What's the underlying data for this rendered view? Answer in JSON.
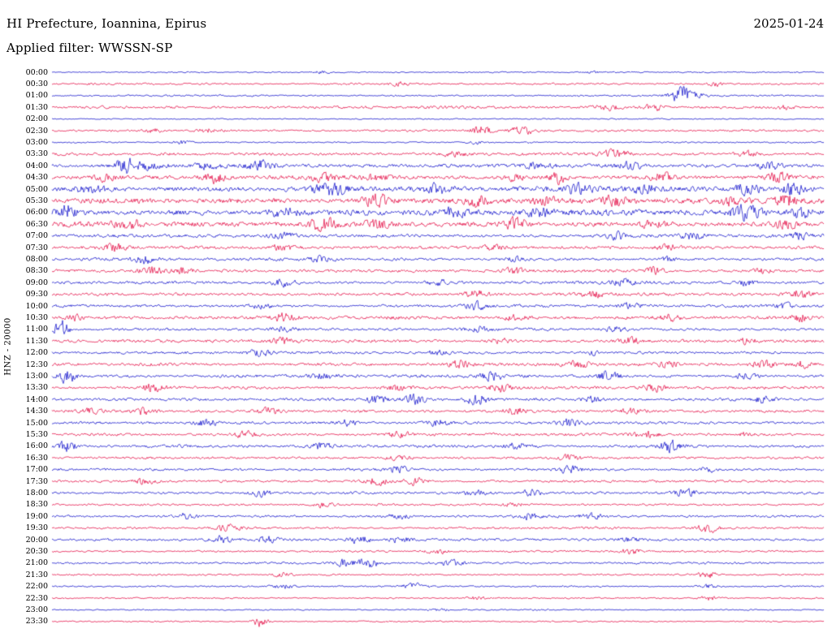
{
  "header": {
    "title": "HI Prefecture, Ioannina, Epirus",
    "date": "2025-01-24",
    "filter_label": "Applied filter: WWSSN-SP",
    "station_label": "HNZ - 20000"
  },
  "chart_data": {
    "type": "line",
    "subtype": "seismogram-helicorder",
    "title": "HI Prefecture, Ioannina, Epirus",
    "date": "2025-01-24",
    "filter": "WWSSN-SP",
    "station_channel": "HNZ",
    "scale": 20000,
    "row_interval_minutes": 30,
    "rows_count": 48,
    "grid": false,
    "legend": false,
    "palette": {
      "blue": "#1a1acd",
      "red": "#e5174c"
    },
    "rows": [
      {
        "time": "00:00",
        "color": "blue",
        "base": 0.5,
        "bursts": [
          [
            0.35,
            1.0,
            10
          ],
          [
            0.7,
            0.8,
            8
          ]
        ]
      },
      {
        "time": "00:30",
        "color": "red",
        "base": 0.7,
        "bursts": [
          [
            0.45,
            1.4,
            8
          ],
          [
            0.86,
            1.8,
            6
          ]
        ]
      },
      {
        "time": "01:00",
        "color": "blue",
        "base": 0.6,
        "bursts": [
          [
            0.815,
            8.5,
            5
          ],
          [
            0.82,
            3.5,
            14
          ]
        ]
      },
      {
        "time": "01:30",
        "color": "red",
        "base": 0.9,
        "bursts": [
          [
            0.72,
            2.2,
            10
          ],
          [
            0.78,
            2.4,
            8
          ],
          [
            0.95,
            1.5,
            8
          ]
        ]
      },
      {
        "time": "02:00",
        "color": "blue",
        "base": 0.4,
        "bursts": []
      },
      {
        "time": "02:30",
        "color": "red",
        "base": 0.8,
        "bursts": [
          [
            0.13,
            1.5,
            8
          ],
          [
            0.2,
            1.6,
            8
          ],
          [
            0.555,
            3.6,
            9
          ],
          [
            0.61,
            3.0,
            12
          ]
        ]
      },
      {
        "time": "03:00",
        "color": "blue",
        "base": 0.5,
        "bursts": [
          [
            0.17,
            1.4,
            8
          ],
          [
            0.55,
            1.2,
            8
          ]
        ]
      },
      {
        "time": "03:30",
        "color": "red",
        "base": 1.0,
        "bursts": [
          [
            0.52,
            2.0,
            10
          ],
          [
            0.73,
            3.0,
            12
          ],
          [
            0.9,
            1.8,
            10
          ]
        ]
      },
      {
        "time": "04:00",
        "color": "blue",
        "base": 1.3,
        "bursts": [
          [
            0.095,
            6.0,
            8
          ],
          [
            0.12,
            3.0,
            16
          ],
          [
            0.2,
            2.5,
            10
          ],
          [
            0.27,
            3.5,
            10
          ],
          [
            0.63,
            2.2,
            12
          ],
          [
            0.75,
            2.8,
            10
          ],
          [
            0.93,
            2.5,
            10
          ]
        ]
      },
      {
        "time": "04:30",
        "color": "red",
        "base": 1.4,
        "bursts": [
          [
            0.07,
            2.5,
            10
          ],
          [
            0.21,
            4.5,
            10
          ],
          [
            0.35,
            3.0,
            12
          ],
          [
            0.42,
            2.5,
            10
          ],
          [
            0.6,
            3.0,
            10
          ],
          [
            0.655,
            4.5,
            8
          ],
          [
            0.79,
            3.2,
            10
          ],
          [
            0.94,
            3.8,
            10
          ]
        ]
      },
      {
        "time": "05:00",
        "color": "blue",
        "base": 1.8,
        "bursts": [
          [
            0.05,
            2.5,
            12
          ],
          [
            0.36,
            5.0,
            12
          ],
          [
            0.5,
            3.0,
            14
          ],
          [
            0.68,
            3.5,
            12
          ],
          [
            0.77,
            3.0,
            10
          ],
          [
            0.9,
            4.0,
            10
          ],
          [
            0.96,
            4.5,
            8
          ]
        ]
      },
      {
        "time": "05:30",
        "color": "red",
        "base": 2.0,
        "bursts": [
          [
            0.42,
            5.5,
            10
          ],
          [
            0.55,
            3.5,
            12
          ],
          [
            0.64,
            3.0,
            10
          ],
          [
            0.73,
            4.0,
            10
          ],
          [
            0.88,
            3.0,
            10
          ],
          [
            0.95,
            5.0,
            8
          ]
        ]
      },
      {
        "time": "06:00",
        "color": "blue",
        "base": 2.0,
        "bursts": [
          [
            0.02,
            6.0,
            8
          ],
          [
            0.3,
            3.0,
            14
          ],
          [
            0.52,
            3.0,
            12
          ],
          [
            0.63,
            3.5,
            10
          ],
          [
            0.9,
            5.5,
            12
          ],
          [
            0.97,
            4.0,
            8
          ]
        ]
      },
      {
        "time": "06:30",
        "color": "red",
        "base": 1.8,
        "bursts": [
          [
            0.1,
            3.0,
            12
          ],
          [
            0.35,
            4.5,
            12
          ],
          [
            0.42,
            3.5,
            10
          ],
          [
            0.6,
            3.8,
            10
          ],
          [
            0.78,
            3.0,
            12
          ],
          [
            0.95,
            3.0,
            10
          ]
        ]
      },
      {
        "time": "07:00",
        "color": "blue",
        "base": 1.2,
        "bursts": [
          [
            0.3,
            2.0,
            10
          ],
          [
            0.73,
            3.0,
            10
          ],
          [
            0.83,
            2.5,
            10
          ],
          [
            0.97,
            2.5,
            8
          ]
        ]
      },
      {
        "time": "07:30",
        "color": "red",
        "base": 1.1,
        "bursts": [
          [
            0.08,
            2.8,
            10
          ],
          [
            0.3,
            2.5,
            10
          ],
          [
            0.57,
            2.0,
            10
          ],
          [
            0.8,
            2.0,
            10
          ]
        ]
      },
      {
        "time": "08:00",
        "color": "blue",
        "base": 1.0,
        "bursts": [
          [
            0.12,
            3.2,
            10
          ],
          [
            0.35,
            2.0,
            10
          ],
          [
            0.6,
            1.8,
            10
          ],
          [
            0.8,
            2.0,
            8
          ]
        ]
      },
      {
        "time": "08:30",
        "color": "red",
        "base": 1.1,
        "bursts": [
          [
            0.13,
            3.0,
            10
          ],
          [
            0.17,
            2.8,
            8
          ],
          [
            0.6,
            2.5,
            10
          ],
          [
            0.78,
            3.0,
            8
          ],
          [
            0.92,
            2.0,
            8
          ]
        ]
      },
      {
        "time": "09:00",
        "color": "blue",
        "base": 1.0,
        "bursts": [
          [
            0.3,
            2.5,
            10
          ],
          [
            0.5,
            2.0,
            10
          ],
          [
            0.74,
            3.0,
            10
          ],
          [
            0.9,
            2.0,
            8
          ]
        ]
      },
      {
        "time": "09:30",
        "color": "red",
        "base": 1.1,
        "bursts": [
          [
            0.55,
            3.0,
            10
          ],
          [
            0.7,
            2.0,
            10
          ],
          [
            0.97,
            4.0,
            8
          ]
        ]
      },
      {
        "time": "10:00",
        "color": "blue",
        "base": 1.0,
        "bursts": [
          [
            0.27,
            2.0,
            10
          ],
          [
            0.55,
            3.0,
            10
          ],
          [
            0.75,
            2.0,
            10
          ],
          [
            0.95,
            3.0,
            8
          ]
        ]
      },
      {
        "time": "10:30",
        "color": "red",
        "base": 1.1,
        "bursts": [
          [
            0.03,
            2.5,
            8
          ],
          [
            0.3,
            3.0,
            10
          ],
          [
            0.6,
            2.0,
            10
          ],
          [
            0.8,
            2.5,
            10
          ],
          [
            0.97,
            3.0,
            8
          ]
        ]
      },
      {
        "time": "11:00",
        "color": "blue",
        "base": 1.0,
        "bursts": [
          [
            0.012,
            7.0,
            6
          ],
          [
            0.3,
            2.0,
            10
          ],
          [
            0.55,
            2.5,
            10
          ],
          [
            0.73,
            2.0,
            10
          ]
        ]
      },
      {
        "time": "11:30",
        "color": "red",
        "base": 1.1,
        "bursts": [
          [
            0.3,
            2.5,
            10
          ],
          [
            0.58,
            2.0,
            10
          ],
          [
            0.75,
            2.8,
            10
          ],
          [
            0.9,
            2.0,
            8
          ]
        ]
      },
      {
        "time": "12:00",
        "color": "blue",
        "base": 0.9,
        "bursts": [
          [
            0.27,
            2.5,
            10
          ],
          [
            0.5,
            1.8,
            10
          ],
          [
            0.7,
            1.8,
            10
          ]
        ]
      },
      {
        "time": "12:30",
        "color": "red",
        "base": 1.1,
        "bursts": [
          [
            0.53,
            3.0,
            10
          ],
          [
            0.68,
            2.5,
            10
          ],
          [
            0.8,
            3.0,
            10
          ],
          [
            0.92,
            2.8,
            10
          ],
          [
            0.97,
            2.5,
            8
          ]
        ]
      },
      {
        "time": "13:00",
        "color": "blue",
        "base": 1.1,
        "bursts": [
          [
            0.02,
            5.5,
            7
          ],
          [
            0.35,
            2.0,
            10
          ],
          [
            0.57,
            3.5,
            9
          ],
          [
            0.72,
            3.2,
            10
          ],
          [
            0.9,
            2.5,
            10
          ]
        ]
      },
      {
        "time": "13:30",
        "color": "red",
        "base": 1.1,
        "bursts": [
          [
            0.13,
            3.2,
            10
          ],
          [
            0.45,
            2.0,
            10
          ],
          [
            0.58,
            3.5,
            10
          ],
          [
            0.78,
            2.8,
            10
          ]
        ]
      },
      {
        "time": "14:00",
        "color": "blue",
        "base": 1.0,
        "bursts": [
          [
            0.42,
            3.0,
            10
          ],
          [
            0.47,
            3.5,
            9
          ],
          [
            0.55,
            4.5,
            10
          ],
          [
            0.7,
            2.0,
            10
          ],
          [
            0.92,
            2.5,
            10
          ]
        ]
      },
      {
        "time": "14:30",
        "color": "red",
        "base": 1.0,
        "bursts": [
          [
            0.05,
            2.5,
            9
          ],
          [
            0.12,
            3.0,
            9
          ],
          [
            0.28,
            2.8,
            10
          ],
          [
            0.6,
            2.5,
            10
          ],
          [
            0.75,
            1.8,
            10
          ]
        ]
      },
      {
        "time": "15:00",
        "color": "blue",
        "base": 1.0,
        "bursts": [
          [
            0.2,
            3.0,
            10
          ],
          [
            0.38,
            2.5,
            10
          ],
          [
            0.5,
            2.5,
            10
          ],
          [
            0.67,
            2.8,
            10
          ]
        ]
      },
      {
        "time": "15:30",
        "color": "red",
        "base": 1.0,
        "bursts": [
          [
            0.25,
            2.8,
            10
          ],
          [
            0.45,
            2.2,
            10
          ],
          [
            0.77,
            2.5,
            10
          ],
          [
            0.9,
            1.8,
            8
          ]
        ]
      },
      {
        "time": "16:00",
        "color": "blue",
        "base": 1.0,
        "bursts": [
          [
            0.02,
            4.5,
            7
          ],
          [
            0.35,
            2.5,
            10
          ],
          [
            0.6,
            2.0,
            10
          ],
          [
            0.8,
            4.0,
            10
          ]
        ]
      },
      {
        "time": "16:30",
        "color": "red",
        "base": 0.8,
        "bursts": [
          [
            0.45,
            1.8,
            10
          ],
          [
            0.67,
            2.5,
            10
          ]
        ]
      },
      {
        "time": "17:00",
        "color": "blue",
        "base": 0.9,
        "bursts": [
          [
            0.45,
            2.5,
            10
          ],
          [
            0.67,
            2.8,
            10
          ],
          [
            0.85,
            1.8,
            8
          ]
        ]
      },
      {
        "time": "17:30",
        "color": "red",
        "base": 0.9,
        "bursts": [
          [
            0.12,
            2.0,
            10
          ],
          [
            0.42,
            3.0,
            10
          ],
          [
            0.47,
            2.8,
            9
          ]
        ]
      },
      {
        "time": "18:00",
        "color": "blue",
        "base": 0.9,
        "bursts": [
          [
            0.27,
            2.5,
            10
          ],
          [
            0.55,
            2.0,
            10
          ],
          [
            0.62,
            2.2,
            9
          ],
          [
            0.82,
            2.8,
            10
          ]
        ]
      },
      {
        "time": "18:30",
        "color": "red",
        "base": 0.7,
        "bursts": [
          [
            0.35,
            2.0,
            10
          ],
          [
            0.6,
            1.5,
            10
          ]
        ]
      },
      {
        "time": "19:00",
        "color": "blue",
        "base": 0.9,
        "bursts": [
          [
            0.17,
            2.2,
            10
          ],
          [
            0.45,
            2.0,
            10
          ],
          [
            0.62,
            2.8,
            10
          ],
          [
            0.7,
            2.5,
            9
          ]
        ]
      },
      {
        "time": "19:30",
        "color": "red",
        "base": 0.8,
        "bursts": [
          [
            0.23,
            2.5,
            10
          ],
          [
            0.85,
            3.5,
            9
          ]
        ]
      },
      {
        "time": "20:00",
        "color": "blue",
        "base": 0.9,
        "bursts": [
          [
            0.22,
            2.8,
            9
          ],
          [
            0.28,
            2.5,
            9
          ],
          [
            0.4,
            3.5,
            10
          ],
          [
            0.45,
            2.5,
            9
          ],
          [
            0.75,
            1.8,
            10
          ]
        ]
      },
      {
        "time": "20:30",
        "color": "red",
        "base": 0.7,
        "bursts": [
          [
            0.5,
            1.5,
            10
          ],
          [
            0.75,
            2.2,
            10
          ]
        ]
      },
      {
        "time": "21:00",
        "color": "blue",
        "base": 0.8,
        "bursts": [
          [
            0.38,
            2.8,
            9
          ],
          [
            0.41,
            3.2,
            9
          ],
          [
            0.52,
            2.5,
            10
          ]
        ]
      },
      {
        "time": "21:30",
        "color": "red",
        "base": 0.6,
        "bursts": [
          [
            0.3,
            1.5,
            10
          ],
          [
            0.85,
            2.5,
            9
          ]
        ]
      },
      {
        "time": "22:00",
        "color": "blue",
        "base": 0.6,
        "bursts": [
          [
            0.3,
            1.5,
            10
          ],
          [
            0.47,
            2.0,
            10
          ],
          [
            0.85,
            1.5,
            8
          ]
        ]
      },
      {
        "time": "22:30",
        "color": "red",
        "base": 0.55,
        "bursts": [
          [
            0.55,
            1.2,
            10
          ],
          [
            0.85,
            1.8,
            8
          ]
        ]
      },
      {
        "time": "23:00",
        "color": "blue",
        "base": 0.45,
        "bursts": [
          [
            0.5,
            0.8,
            10
          ]
        ]
      },
      {
        "time": "23:30",
        "color": "red",
        "base": 0.5,
        "bursts": [
          [
            0.27,
            4.5,
            6
          ]
        ]
      }
    ]
  }
}
